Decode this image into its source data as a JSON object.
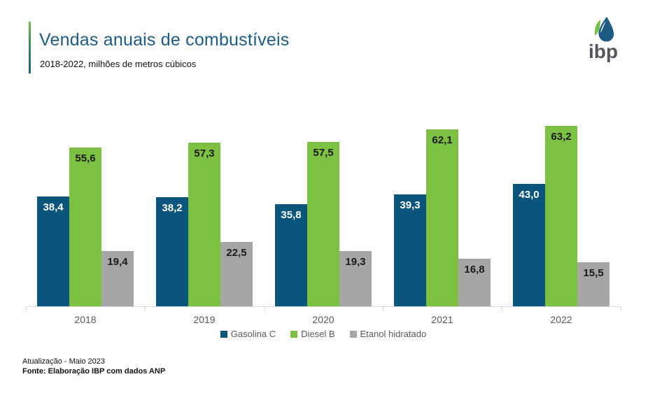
{
  "header": {
    "title": "Vendas anuais de combustíveis",
    "subtitle": "2018-2022, milhões de metros cúbicos"
  },
  "logo": {
    "text": "ibp",
    "drop_blue": "#1E5B84",
    "leaf_green": "#72BF44"
  },
  "chart_data": {
    "type": "bar",
    "title": "Vendas anuais de combustíveis",
    "subtitle": "2018-2022, milhões de metros cúbicos",
    "unit": "milhões de metros cúbicos",
    "categories": [
      "2018",
      "2019",
      "2020",
      "2021",
      "2022"
    ],
    "series": [
      {
        "name": "Gasolina C",
        "color": "#0A557C",
        "values": [
          38.4,
          38.2,
          35.8,
          39.3,
          43.0
        ],
        "labels": [
          "38,4",
          "38,2",
          "35,8",
          "39,3",
          "43,0"
        ],
        "label_color": "#FFFFFF"
      },
      {
        "name": "Diesel B",
        "color": "#7CC142",
        "values": [
          55.6,
          57.3,
          57.5,
          62.1,
          63.2
        ],
        "labels": [
          "55,6",
          "57,3",
          "57,5",
          "62,1",
          "63,2"
        ],
        "label_color": "#1A1A1A"
      },
      {
        "name": "Etanol hidratado",
        "color": "#A6A6A6",
        "values": [
          19.4,
          22.5,
          19.3,
          16.8,
          15.5
        ],
        "labels": [
          "19,4",
          "22,5",
          "19,3",
          "16,8",
          "15,5"
        ],
        "label_color": "#1A1A1A"
      }
    ],
    "ylim": [
      0,
      70.5
    ],
    "grid": false,
    "legend_position": "bottom",
    "axis_color": "#D9D9D9"
  },
  "footer": {
    "line1": "Atualização - Maio 2023",
    "line2": "Fonte: Elaboração IBP com dados ANP"
  }
}
